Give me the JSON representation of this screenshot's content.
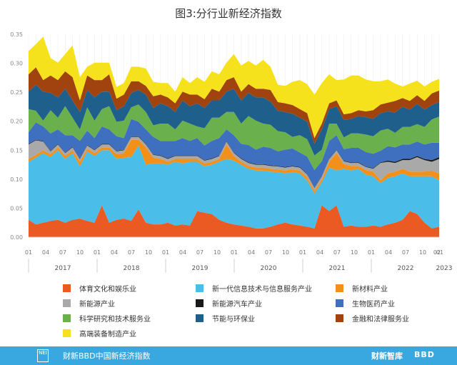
{
  "chart_data": {
    "type": "area",
    "stacked": true,
    "title": "图3:分行业新经济指数",
    "ylim": [
      0,
      0.35
    ],
    "yticks": [
      "0.00",
      "0.05",
      "0.10",
      "0.15",
      "0.20",
      "0.25",
      "0.30",
      "0.35"
    ],
    "x_month_labels": [
      "01",
      "04",
      "07",
      "10",
      "01",
      "04",
      "07",
      "10",
      "01",
      "04",
      "07",
      "10",
      "01",
      "04",
      "07",
      "10",
      "01",
      "04",
      "07",
      "10",
      "01",
      "04",
      "07",
      "10",
      "01",
      "02"
    ],
    "x_year_labels": [
      "2017",
      "2018",
      "2019",
      "2020",
      "2021",
      "2022",
      "2023"
    ],
    "series": [
      {
        "name": "体育文化和娱乐业",
        "color": "#ec5a24",
        "values": [
          0.03,
          0.022,
          0.025,
          0.028,
          0.03,
          0.025,
          0.03,
          0.032,
          0.028,
          0.025,
          0.055,
          0.025,
          0.03,
          0.032,
          0.028,
          0.048,
          0.025,
          0.022,
          0.022,
          0.025,
          0.02,
          0.022,
          0.02,
          0.045,
          0.042,
          0.04,
          0.03,
          0.025,
          0.022,
          0.02,
          0.018,
          0.015,
          0.015,
          0.018,
          0.022,
          0.025,
          0.022,
          0.02,
          0.018,
          0.015,
          0.055,
          0.045,
          0.055,
          0.018,
          0.02,
          0.018,
          0.018,
          0.02,
          0.018,
          0.022,
          0.025,
          0.03,
          0.045,
          0.04,
          0.025,
          0.015,
          0.018
        ]
      },
      {
        "name": "新一代信息技术与信息服务产业",
        "color": "#4bbde9",
        "values": [
          0.1,
          0.115,
          0.12,
          0.11,
          0.12,
          0.11,
          0.115,
          0.09,
          0.12,
          0.115,
          0.095,
          0.125,
          0.105,
          0.105,
          0.11,
          0.11,
          0.1,
          0.105,
          0.105,
          0.1,
          0.11,
          0.105,
          0.11,
          0.085,
          0.08,
          0.085,
          0.1,
          0.11,
          0.11,
          0.105,
          0.1,
          0.1,
          0.1,
          0.095,
          0.09,
          0.085,
          0.09,
          0.09,
          0.08,
          0.06,
          0.04,
          0.075,
          0.06,
          0.1,
          0.095,
          0.1,
          0.09,
          0.085,
          0.075,
          0.08,
          0.08,
          0.08,
          0.06,
          0.065,
          0.08,
          0.09,
          0.08
        ]
      },
      {
        "name": "新材料产业",
        "color": "#f39019",
        "values": [
          0.005,
          0.005,
          0.005,
          0.005,
          0.005,
          0.005,
          0.005,
          0.008,
          0.005,
          0.005,
          0.005,
          0.005,
          0.008,
          0.008,
          0.03,
          0.01,
          0.03,
          0.01,
          0.008,
          0.005,
          0.005,
          0.008,
          0.005,
          0.005,
          0.005,
          0.005,
          0.005,
          0.025,
          0.008,
          0.005,
          0.005,
          0.005,
          0.005,
          0.005,
          0.005,
          0.005,
          0.005,
          0.005,
          0.005,
          0.005,
          0.005,
          0.01,
          0.03,
          0.008,
          0.008,
          0.005,
          0.008,
          0.008,
          0.005,
          0.008,
          0.008,
          0.008,
          0.008,
          0.008,
          0.008,
          0.01,
          0.012
        ]
      },
      {
        "name": "新能源产业",
        "color": "#a9a9a9",
        "values": [
          0.025,
          0.025,
          0.015,
          0.005,
          0.005,
          0.005,
          0.005,
          0.005,
          0.005,
          0.005,
          0.005,
          0.005,
          0.005,
          0.005,
          0.005,
          0.005,
          0.005,
          0.005,
          0.005,
          0.005,
          0.005,
          0.005,
          0.005,
          0.005,
          0.005,
          0.005,
          0.005,
          0.005,
          0.005,
          0.005,
          0.005,
          0.005,
          0.005,
          0.005,
          0.005,
          0.005,
          0.005,
          0.005,
          0.005,
          0.005,
          0.005,
          0.005,
          0.005,
          0.005,
          0.005,
          0.005,
          0.005,
          0.005,
          0.03,
          0.02,
          0.015,
          0.015,
          0.02,
          0.025,
          0.02,
          0.015,
          0.025
        ]
      },
      {
        "name": "新能源汽车产业",
        "color": "#1a1a1a",
        "values": [
          0.001,
          0.001,
          0.001,
          0.001,
          0.001,
          0.001,
          0.001,
          0.001,
          0.001,
          0.001,
          0.001,
          0.001,
          0.001,
          0.001,
          0.001,
          0.001,
          0.001,
          0.001,
          0.001,
          0.001,
          0.001,
          0.001,
          0.001,
          0.001,
          0.001,
          0.001,
          0.001,
          0.001,
          0.001,
          0.001,
          0.001,
          0.001,
          0.001,
          0.001,
          0.001,
          0.001,
          0.001,
          0.001,
          0.001,
          0.001,
          0.001,
          0.001,
          0.001,
          0.001,
          0.001,
          0.001,
          0.001,
          0.001,
          0.001,
          0.002,
          0.002,
          0.002,
          0.002,
          0.002,
          0.002,
          0.003,
          0.003
        ]
      },
      {
        "name": "生物医药产业",
        "color": "#3f6fbf",
        "values": [
          0.02,
          0.03,
          0.025,
          0.03,
          0.025,
          0.03,
          0.02,
          0.03,
          0.025,
          0.02,
          0.03,
          0.025,
          0.025,
          0.02,
          0.03,
          0.025,
          0.025,
          0.03,
          0.025,
          0.03,
          0.025,
          0.03,
          0.025,
          0.03,
          0.025,
          0.03,
          0.03,
          0.02,
          0.03,
          0.025,
          0.03,
          0.025,
          0.03,
          0.03,
          0.025,
          0.03,
          0.03,
          0.025,
          0.03,
          0.03,
          0.025,
          0.03,
          0.025,
          0.02,
          0.025,
          0.025,
          0.025,
          0.025,
          0.02,
          0.025,
          0.025,
          0.025,
          0.025,
          0.025,
          0.025,
          0.03,
          0.025
        ]
      },
      {
        "name": "科学研究和技术服务业",
        "color": "#6ab04c",
        "values": [
          0.04,
          0.02,
          0.01,
          0.04,
          0.02,
          0.05,
          0.03,
          0.02,
          0.04,
          0.03,
          0.03,
          0.04,
          0.025,
          0.03,
          0.02,
          0.03,
          0.03,
          0.02,
          0.03,
          0.03,
          0.02,
          0.03,
          0.03,
          0.02,
          0.03,
          0.04,
          0.035,
          0.03,
          0.04,
          0.035,
          0.05,
          0.05,
          0.04,
          0.04,
          0.035,
          0.03,
          0.02,
          0.03,
          0.03,
          0.025,
          0.02,
          0.03,
          0.02,
          0.02,
          0.025,
          0.025,
          0.03,
          0.03,
          0.035,
          0.03,
          0.025,
          0.03,
          0.03,
          0.03,
          0.03,
          0.04,
          0.045
        ]
      },
      {
        "name": "节能与环保业",
        "color": "#1f5f8b",
        "values": [
          0.03,
          0.045,
          0.05,
          0.03,
          0.035,
          0.03,
          0.03,
          0.03,
          0.03,
          0.04,
          0.03,
          0.025,
          0.02,
          0.025,
          0.025,
          0.025,
          0.03,
          0.03,
          0.035,
          0.03,
          0.03,
          0.035,
          0.03,
          0.04,
          0.035,
          0.03,
          0.03,
          0.035,
          0.04,
          0.04,
          0.04,
          0.04,
          0.045,
          0.04,
          0.035,
          0.035,
          0.04,
          0.03,
          0.03,
          0.02,
          0.035,
          0.025,
          0.03,
          0.03,
          0.025,
          0.03,
          0.03,
          0.03,
          0.03,
          0.03,
          0.035,
          0.035,
          0.03,
          0.035,
          0.03,
          0.025,
          0.025
        ]
      },
      {
        "name": "金融和法律服务业",
        "color": "#a0430f",
        "values": [
          0.03,
          0.03,
          0.02,
          0.03,
          0.03,
          0.03,
          0.04,
          0.02,
          0.025,
          0.03,
          0.02,
          0.03,
          0.02,
          0.02,
          0.02,
          0.015,
          0.015,
          0.02,
          0.015,
          0.015,
          0.015,
          0.015,
          0.02,
          0.015,
          0.015,
          0.02,
          0.015,
          0.02,
          0.02,
          0.015,
          0.015,
          0.015,
          0.015,
          0.02,
          0.015,
          0.015,
          0.015,
          0.015,
          0.015,
          0.01,
          0.01,
          0.01,
          0.01,
          0.01,
          0.01,
          0.01,
          0.01,
          0.015,
          0.015,
          0.015,
          0.02,
          0.015,
          0.015,
          0.015,
          0.015,
          0.02,
          0.02
        ]
      },
      {
        "name": "高端装备制造产业",
        "color": "#f6e21c",
        "values": [
          0.04,
          0.04,
          0.075,
          0.03,
          0.03,
          0.03,
          0.055,
          0.04,
          0.015,
          0.03,
          0.03,
          0.02,
          0.02,
          0.02,
          0.025,
          0.025,
          0.03,
          0.025,
          0.02,
          0.025,
          0.02,
          0.025,
          0.02,
          0.03,
          0.03,
          0.03,
          0.03,
          0.03,
          0.04,
          0.045,
          0.04,
          0.04,
          0.05,
          0.04,
          0.03,
          0.03,
          0.04,
          0.05,
          0.05,
          0.075,
          0.07,
          0.05,
          0.035,
          0.06,
          0.065,
          0.06,
          0.055,
          0.05,
          0.04,
          0.04,
          0.03,
          0.02,
          0.03,
          0.025,
          0.025,
          0.02,
          0.02
        ]
      }
    ]
  },
  "footer": {
    "text": "财新BBD中国新经济指数",
    "logo_text": "NEI",
    "brand_left": "财新智库",
    "brand_right": "BBD"
  }
}
